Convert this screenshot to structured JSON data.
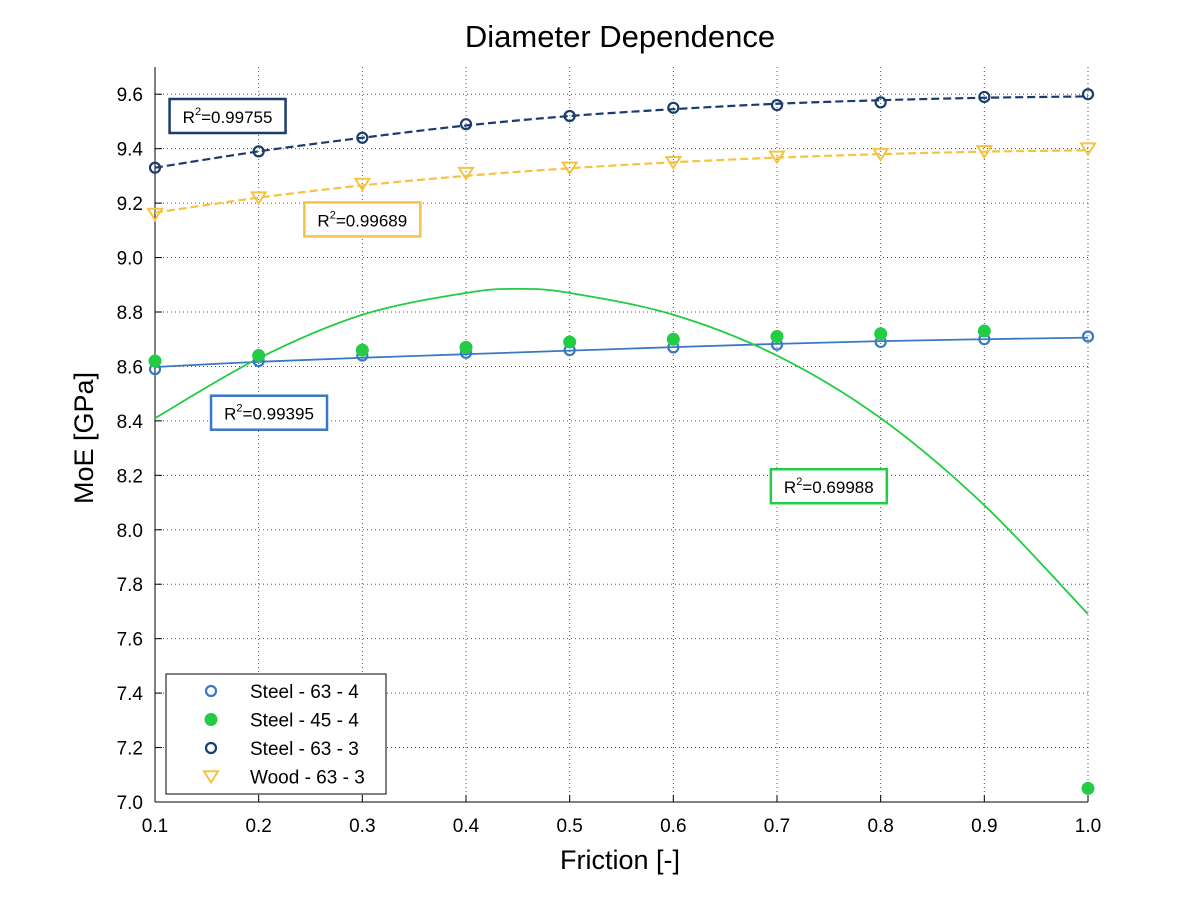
{
  "chart_data": {
    "type": "scatter",
    "title": "Diameter Dependence",
    "xlabel": "Friction [-]",
    "ylabel": "MoE [GPa]",
    "xlim": [
      0.1,
      1.0
    ],
    "ylim": [
      7.0,
      9.7
    ],
    "xticks": [
      "0.1",
      "0.2",
      "0.3",
      "0.4",
      "0.5",
      "0.6",
      "0.7",
      "0.8",
      "0.9",
      "1.0"
    ],
    "yticks": [
      "7.0",
      "7.2",
      "7.4",
      "7.6",
      "7.8",
      "8.0",
      "8.2",
      "8.4",
      "8.6",
      "8.8",
      "9.0",
      "9.2",
      "9.4",
      "9.6"
    ],
    "grid": true,
    "legend_position": "bottom-left",
    "x": [
      0.1,
      0.2,
      0.3,
      0.4,
      0.5,
      0.6,
      0.7,
      0.8,
      0.9,
      1.0
    ],
    "series": [
      {
        "name": "Steel - 63 - 4",
        "marker": "open-circle",
        "color": "#3a78c4",
        "values": [
          8.59,
          8.62,
          8.64,
          8.65,
          8.66,
          8.67,
          8.68,
          8.69,
          8.7,
          8.71
        ],
        "fit": {
          "style": "solid",
          "points": [
            [
              0.1,
              8.598
            ],
            [
              0.2,
              8.617
            ],
            [
              0.3,
              8.632
            ],
            [
              0.4,
              8.645
            ],
            [
              0.5,
              8.658
            ],
            [
              0.6,
              8.671
            ],
            [
              0.7,
              8.683
            ],
            [
              0.8,
              8.693
            ],
            [
              0.9,
              8.7
            ],
            [
              1.0,
              8.706
            ]
          ]
        }
      },
      {
        "name": "Steel - 45 - 4",
        "marker": "filled-circle",
        "color": "#22cc44",
        "values": [
          8.62,
          8.64,
          8.66,
          8.67,
          8.69,
          8.7,
          8.71,
          8.72,
          8.73,
          7.05
        ],
        "fit": {
          "style": "solid",
          "points": [
            [
              0.1,
              8.41
            ],
            [
              0.2,
              8.63
            ],
            [
              0.3,
              8.79
            ],
            [
              0.4,
              8.87
            ],
            [
              0.45,
              8.885
            ],
            [
              0.5,
              8.87
            ],
            [
              0.6,
              8.79
            ],
            [
              0.7,
              8.64
            ],
            [
              0.8,
              8.41
            ],
            [
              0.9,
              8.09
            ],
            [
              1.0,
              7.69
            ]
          ]
        }
      },
      {
        "name": "Steel - 63 - 3",
        "marker": "open-circle",
        "color": "#1a3c6e",
        "values": [
          9.33,
          9.39,
          9.44,
          9.49,
          9.52,
          9.55,
          9.56,
          9.57,
          9.59,
          9.6
        ],
        "fit": {
          "style": "dashed",
          "points": [
            [
              0.1,
              9.33
            ],
            [
              0.2,
              9.39
            ],
            [
              0.3,
              9.44
            ],
            [
              0.4,
              9.485
            ],
            [
              0.5,
              9.52
            ],
            [
              0.6,
              9.545
            ],
            [
              0.7,
              9.565
            ],
            [
              0.8,
              9.578
            ],
            [
              0.9,
              9.587
            ],
            [
              1.0,
              9.592
            ]
          ]
        }
      },
      {
        "name": "Wood - 63 - 3",
        "marker": "open-triangle-down",
        "color": "#f5c342",
        "values": [
          9.16,
          9.22,
          9.27,
          9.31,
          9.33,
          9.35,
          9.37,
          9.38,
          9.39,
          9.4
        ],
        "fit": {
          "style": "dashed",
          "points": [
            [
              0.1,
              9.165
            ],
            [
              0.2,
              9.22
            ],
            [
              0.3,
              9.265
            ],
            [
              0.4,
              9.3
            ],
            [
              0.5,
              9.328
            ],
            [
              0.6,
              9.35
            ],
            [
              0.7,
              9.367
            ],
            [
              0.8,
              9.38
            ],
            [
              0.9,
              9.389
            ],
            [
              1.0,
              9.394
            ]
          ]
        }
      }
    ],
    "annotations": [
      {
        "label": "R",
        "sup": "2",
        "value": "=0.99755",
        "color": "#1a3c6e",
        "x": 0.17,
        "y": 9.52
      },
      {
        "label": "R",
        "sup": "2",
        "value": "=0.99689",
        "color": "#f5c342",
        "x": 0.3,
        "y": 9.14
      },
      {
        "label": "R",
        "sup": "2",
        "value": "=0.99395",
        "color": "#3a78c4",
        "x": 0.21,
        "y": 8.43
      },
      {
        "label": "R",
        "sup": "2",
        "value": "=0.69988",
        "color": "#22cc44",
        "x": 0.75,
        "y": 8.16
      }
    ]
  }
}
